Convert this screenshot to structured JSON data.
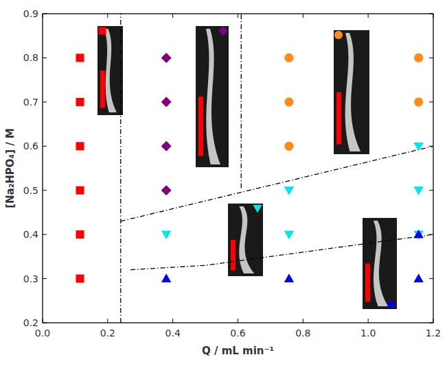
{
  "chart_data": {
    "type": "scatter",
    "x_label": "Q / mL min⁻¹",
    "y_label": "[Na₂HPO₄] / M",
    "xlim": [
      0,
      1.2
    ],
    "ylim": [
      0.2,
      0.9
    ],
    "xticks": [
      {
        "value": 0,
        "label": "0.0"
      },
      0.2,
      0.4,
      0.6,
      0.8,
      {
        "value": 1,
        "label": "1.0"
      },
      1.2
    ],
    "yticks": [
      0.2,
      0.3,
      0.4,
      0.5,
      0.6,
      0.7,
      0.8,
      0.9
    ],
    "series": [
      {
        "color": "#ff0000",
        "marker": "square",
        "x": [
          0.115,
          0.115,
          0.115,
          0.115,
          0.115,
          0.115
        ],
        "values": [
          0.3,
          0.4,
          0.5,
          0.6,
          0.7,
          0.8
        ]
      },
      {
        "color": "#800080",
        "marker": "diamond",
        "x": [
          0.38,
          0.38,
          0.38,
          0.38
        ],
        "values": [
          0.5,
          0.6,
          0.7,
          0.8
        ]
      },
      {
        "color": "#ff8c1a",
        "marker": "circle",
        "x": [
          0.757,
          0.757,
          0.757,
          1.155,
          1.155
        ],
        "values": [
          0.6,
          0.7,
          0.8,
          0.7,
          0.8
        ]
      },
      {
        "color": "#00e5ee",
        "marker": "triangle-down",
        "x": [
          0.38,
          0.757,
          0.757,
          1.155,
          1.155,
          1.155
        ],
        "values": [
          0.4,
          0.4,
          0.5,
          0.4,
          0.5,
          0.6
        ]
      },
      {
        "color": "#0000ff",
        "marker": "triangle-up",
        "x": [
          0.38,
          0.757,
          1.155,
          1.155
        ],
        "values": [
          0.3,
          0.3,
          0.3,
          0.4
        ]
      },
      {
        "type": "line",
        "color": "#000000",
        "line_style": "dashdot",
        "x": [
          0.24,
          0.24
        ],
        "values": [
          0.2,
          0.9
        ]
      },
      {
        "type": "line",
        "color": "#000000",
        "line_style": "dashdot",
        "x": [
          0.61,
          0.61
        ],
        "values": [
          0.505,
          0.9
        ]
      },
      {
        "type": "line",
        "color": "#000000",
        "line_style": "dashdot",
        "x": [
          0.24,
          1.2
        ],
        "values": [
          0.43,
          0.6
        ]
      },
      {
        "type": "line",
        "color": "#000000",
        "line_style": "dashdot",
        "x": [
          0.27,
          0.5,
          1.2
        ],
        "values": [
          0.32,
          0.33,
          0.4
        ]
      }
    ]
  }
}
